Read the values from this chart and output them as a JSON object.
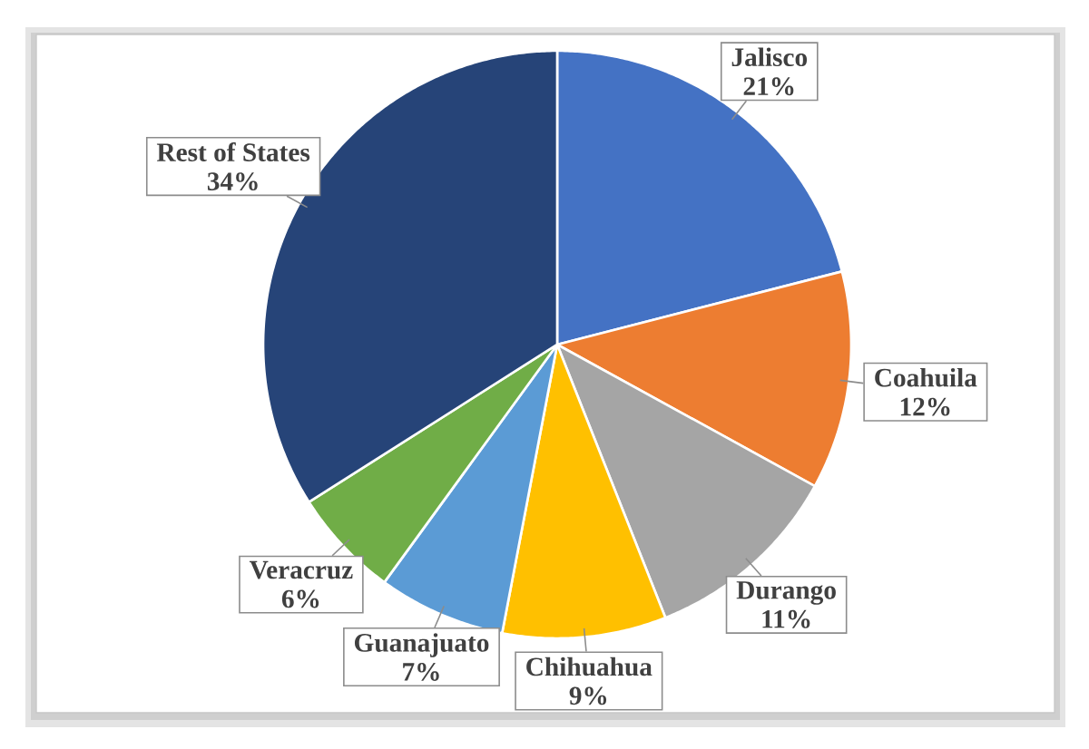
{
  "chart_data": {
    "type": "pie",
    "categories": [
      "Jalisco",
      "Coahuila",
      "Durango",
      "Chihuahua",
      "Guanajuato",
      "Veracruz",
      "Rest of States"
    ],
    "values": [
      21,
      12,
      11,
      9,
      7,
      6,
      34
    ],
    "value_labels": [
      "21%",
      "12%",
      "11%",
      "9%",
      "7%",
      "6%",
      "34%"
    ],
    "colors": [
      "#4472c4",
      "#ed7d31",
      "#a5a5a5",
      "#ffc000",
      "#5b9bd5",
      "#70ad47",
      "#264478"
    ]
  }
}
